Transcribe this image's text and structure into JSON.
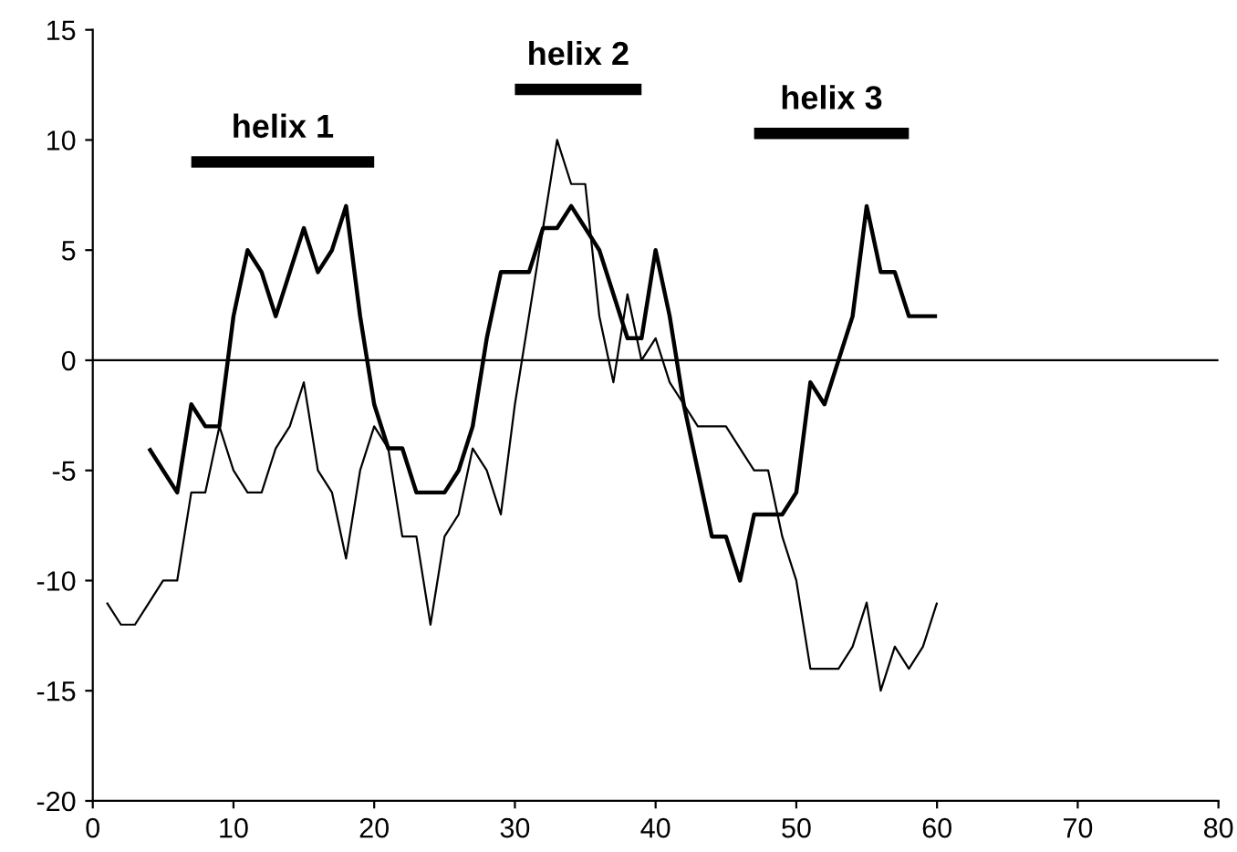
{
  "chart_data": {
    "type": "line",
    "xlim": [
      0,
      80
    ],
    "xticks": [
      0,
      10,
      20,
      30,
      40,
      50,
      60,
      70,
      80
    ],
    "ylim": [
      -20,
      15
    ],
    "yticks": [
      -20,
      -15,
      -10,
      -5,
      0,
      5,
      10,
      15
    ],
    "grid": false,
    "legend": false,
    "marker": "none",
    "line_style": "solid",
    "ref_lines": [
      {
        "axis": "y",
        "value": 0,
        "color": "#000000"
      }
    ],
    "series": [
      {
        "color": "#000000",
        "x": [
          4,
          5,
          6,
          7,
          8,
          9,
          10,
          11,
          12,
          13,
          14,
          15,
          16,
          17,
          18,
          19,
          20,
          21,
          22,
          23,
          24,
          25,
          26,
          27,
          28,
          29,
          30,
          31,
          32,
          33,
          34,
          35,
          36,
          37,
          38,
          39,
          40,
          41,
          42,
          43,
          44,
          45,
          46,
          47,
          48,
          49,
          50,
          51,
          52,
          53,
          54,
          55,
          56,
          57,
          58,
          59,
          60
        ],
        "values": [
          -4,
          -5,
          -6,
          -2,
          -3,
          -3,
          2,
          5,
          4,
          2,
          4,
          6,
          4,
          5,
          7,
          2,
          -2,
          -4,
          -4,
          -6,
          -6,
          -6,
          -5,
          -3,
          1,
          4,
          4,
          4,
          6,
          6,
          7,
          6,
          5,
          3,
          1,
          1,
          5,
          2,
          -2,
          -5,
          -8,
          -8,
          -10,
          -7,
          -7,
          -7,
          -6,
          -1,
          -2,
          0,
          2,
          7,
          4,
          4,
          2,
          2,
          2
        ]
      },
      {
        "color": "#000000",
        "x": [
          1,
          2,
          3,
          4,
          5,
          6,
          7,
          8,
          9,
          10,
          11,
          12,
          13,
          14,
          15,
          16,
          17,
          18,
          19,
          20,
          21,
          22,
          23,
          24,
          25,
          26,
          27,
          28,
          29,
          30,
          31,
          32,
          33,
          34,
          35,
          36,
          37,
          38,
          39,
          40,
          41,
          42,
          43,
          44,
          45,
          46,
          47,
          48,
          49,
          50,
          51,
          52,
          53,
          54,
          55,
          56,
          57,
          58,
          59,
          60
        ],
        "values": [
          -11,
          -12,
          -12,
          -11,
          -10,
          -10,
          -6,
          -6,
          -3,
          -5,
          -6,
          -6,
          -4,
          -3,
          -1,
          -5,
          -6,
          -9,
          -5,
          -3,
          -4,
          -8,
          -8,
          -12,
          -8,
          -7,
          -4,
          -5,
          -7,
          -2,
          2,
          6,
          10,
          8,
          8,
          2,
          -1,
          3,
          0,
          1,
          -1,
          -2,
          -3,
          -3,
          -3,
          -4,
          -5,
          -5,
          -8,
          -10,
          -14,
          -14,
          -14,
          -13,
          -11,
          -15,
          -13,
          -14,
          -13,
          -11
        ]
      },
      {
        "name": "helix 1",
        "color": "#000000",
        "x": [
          7,
          20
        ],
        "values": [
          9,
          9
        ]
      },
      {
        "name": "helix 2",
        "color": "#000000",
        "x": [
          30,
          39
        ],
        "values": [
          12.3,
          12.3
        ]
      },
      {
        "name": "helix 3",
        "color": "#000000",
        "x": [
          47,
          58
        ],
        "values": [
          10.3,
          10.3
        ]
      }
    ]
  }
}
